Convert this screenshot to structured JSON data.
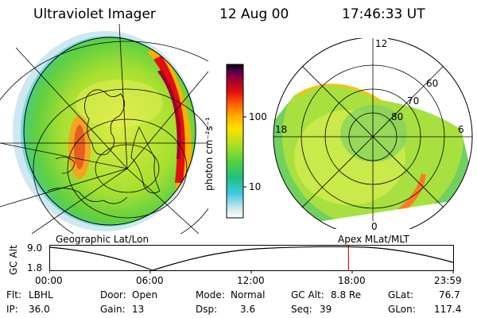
{
  "header": {
    "instrument": "Ultraviolet Imager",
    "date": "12 Aug 00",
    "time": "17:46:33 UT"
  },
  "colorbar": {
    "unit_label": "photon cm⁻²s⁻¹",
    "tick_100": "100",
    "tick_10": "10",
    "colors": [
      "#ffffff",
      "#cfe8f0",
      "#40c8e0",
      "#20c080",
      "#50d040",
      "#b0e020",
      "#ffe000",
      "#ffb000",
      "#ff6000",
      "#e01010",
      "#a00030",
      "#500050",
      "#000000"
    ]
  },
  "left_panel": {
    "label": "Geographic Lat/Lon"
  },
  "right_panel": {
    "label": "Apex MLat/MLT",
    "mlt_12": "12",
    "mlt_18": "18",
    "mlt_6": "6",
    "mlt_0": "0",
    "lat_60": "60",
    "lat_70": "70",
    "lat_80": "80"
  },
  "gc_alt_plot": {
    "axis_label": "GC Alt",
    "y_max": "9.0",
    "y_min": "1.8",
    "x_ticks": [
      "00:00",
      "06:00",
      "12:00",
      "18:00",
      "23:59"
    ],
    "current_time_marker_hour": 17.78
  },
  "info": {
    "flt_label": "Flt:",
    "flt_value": "LBHL",
    "door_label": "Door:",
    "door_value": "Open",
    "mode_label": "Mode:",
    "mode_value": "Normal",
    "gcalt_label": "GC Alt:",
    "gcalt_value": "8.8 Re",
    "glat_label": "GLat:",
    "glat_value": "76.7",
    "ip_label": "IP:",
    "ip_value": "36.0",
    "gain_label": "Gain:",
    "gain_value": "13",
    "dsp_label": "Dsp:",
    "dsp_value": "3.6",
    "seq_label": "Seq:",
    "seq_value": "39",
    "glon_label": "GLon:",
    "glon_value": "117.4"
  }
}
